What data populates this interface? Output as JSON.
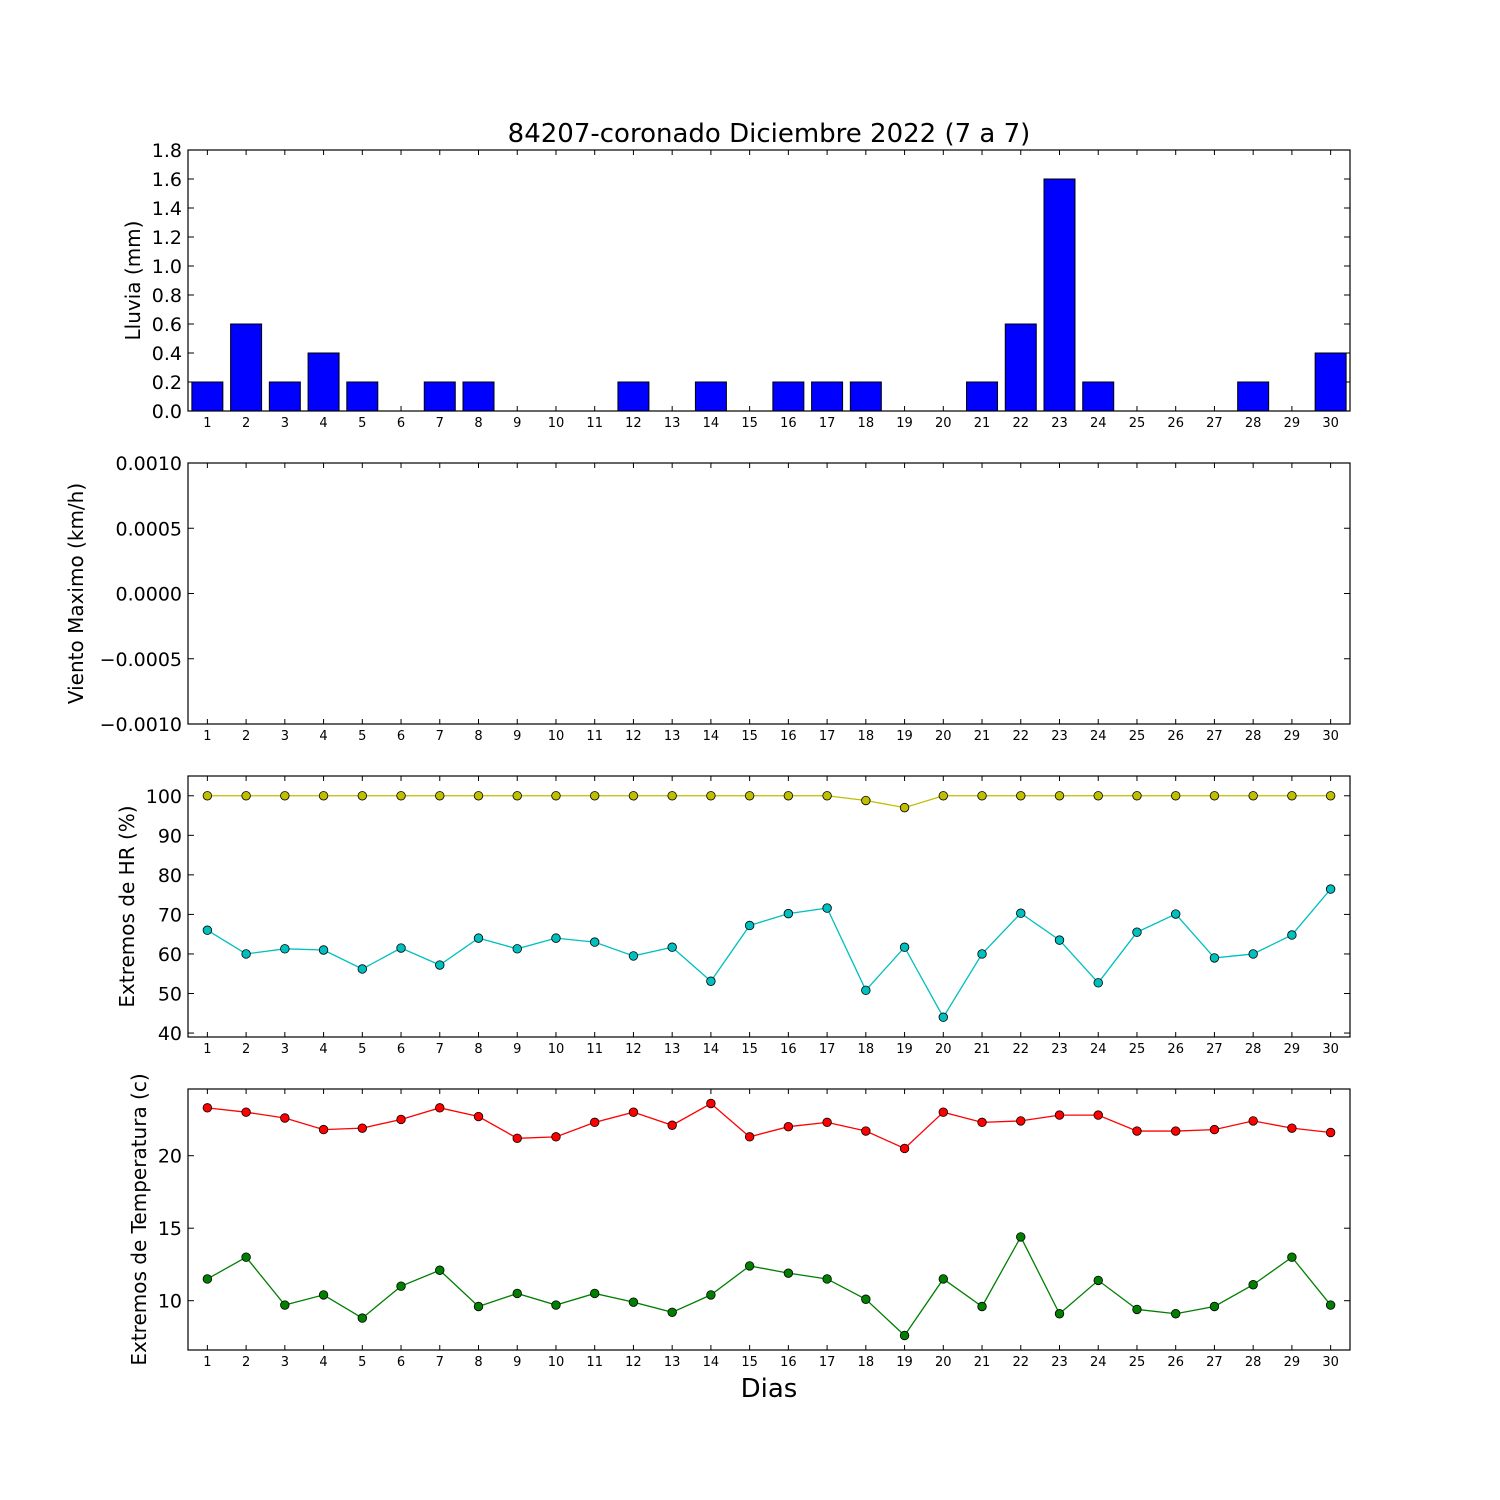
{
  "title": "84207-coronado Diciembre 2022  (7 a 7)",
  "xlabel": "Dias",
  "chart_data": [
    {
      "type": "bar",
      "ylabel": "Lluvia (mm)",
      "colors": {
        "bar": "#0000ff"
      },
      "x": [
        1,
        2,
        3,
        4,
        5,
        6,
        7,
        8,
        9,
        10,
        11,
        12,
        13,
        14,
        15,
        16,
        17,
        18,
        19,
        20,
        21,
        22,
        23,
        24,
        25,
        26,
        27,
        28,
        29,
        30
      ],
      "values": [
        0.2,
        0.6,
        0.2,
        0.4,
        0.2,
        0,
        0.2,
        0.2,
        0,
        0,
        0,
        0.2,
        0,
        0.2,
        0,
        0.2,
        0.2,
        0.2,
        0,
        0,
        0.2,
        0.6,
        1.6,
        0.2,
        0,
        0,
        0,
        0.2,
        0,
        0.4
      ],
      "ylim": [
        0,
        1.8
      ],
      "yticks": [
        "0.0",
        "0.2",
        "0.4",
        "0.6",
        "0.8",
        "1.0",
        "1.2",
        "1.4",
        "1.6",
        "1.8"
      ],
      "xlim": [
        0.5,
        30.5
      ]
    },
    {
      "type": "line",
      "ylabel": "Viento Maximo (km/h)",
      "series": [],
      "ylim": [
        -0.001,
        0.001
      ],
      "yticks": [
        "−0.0010",
        "−0.0005",
        "0.0000",
        "0.0005",
        "0.0010"
      ],
      "xlim": [
        0.5,
        30.5
      ]
    },
    {
      "type": "line",
      "ylabel": "Extremos de HR (%)",
      "x": [
        1,
        2,
        3,
        4,
        5,
        6,
        7,
        8,
        9,
        10,
        11,
        12,
        13,
        14,
        15,
        16,
        17,
        18,
        19,
        20,
        21,
        22,
        23,
        24,
        25,
        26,
        27,
        28,
        29,
        30
      ],
      "series": [
        {
          "color": "#bfbf00",
          "values": [
            100,
            100,
            100,
            100,
            100,
            100,
            100,
            100,
            100,
            100,
            100,
            100,
            100,
            100,
            100,
            100,
            100,
            98.8,
            97,
            100,
            100,
            100,
            100,
            100,
            100,
            100,
            100,
            100,
            100,
            100
          ]
        },
        {
          "color": "#00bfbf",
          "values": [
            66,
            60,
            61.3,
            61,
            56.2,
            61.5,
            57.2,
            64,
            61.3,
            64,
            63,
            59.5,
            61.7,
            53.1,
            67.2,
            70.2,
            71.6,
            50.8,
            61.7,
            44,
            60,
            70.3,
            63.5,
            52.7,
            65.5,
            70.1,
            59,
            60,
            64.8,
            76.4
          ]
        }
      ],
      "ylim": [
        39,
        105
      ],
      "yticks": [
        "40",
        "50",
        "60",
        "70",
        "80",
        "90",
        "100"
      ],
      "xlim": [
        0.5,
        30.5
      ]
    },
    {
      "type": "line",
      "ylabel": "Extremos de Temperatura (c)",
      "x": [
        1,
        2,
        3,
        4,
        5,
        6,
        7,
        8,
        9,
        10,
        11,
        12,
        13,
        14,
        15,
        16,
        17,
        18,
        19,
        20,
        21,
        22,
        23,
        24,
        25,
        26,
        27,
        28,
        29,
        30
      ],
      "series": [
        {
          "color": "#ff0000",
          "values": [
            23.3,
            23,
            22.6,
            21.8,
            21.9,
            22.5,
            23.3,
            22.7,
            21.2,
            21.3,
            22.3,
            23,
            22.1,
            23.6,
            21.3,
            22,
            22.3,
            21.7,
            20.5,
            23,
            22.3,
            22.4,
            22.8,
            22.8,
            21.7,
            21.7,
            21.8,
            22.4,
            21.9,
            21.6
          ]
        },
        {
          "color": "#007f00",
          "values": [
            11.5,
            13,
            9.7,
            10.4,
            8.8,
            11,
            12.1,
            9.6,
            10.5,
            9.7,
            10.5,
            9.9,
            9.2,
            10.4,
            12.4,
            11.9,
            11.5,
            10.1,
            7.6,
            11.5,
            9.6,
            14.4,
            9.1,
            11.4,
            9.4,
            9.1,
            9.6,
            11.1,
            13,
            9.7
          ]
        }
      ],
      "ylim": [
        6.6,
        24.6
      ],
      "yticks": [
        "10",
        "15",
        "20"
      ],
      "xlim": [
        0.5,
        30.5
      ]
    }
  ]
}
